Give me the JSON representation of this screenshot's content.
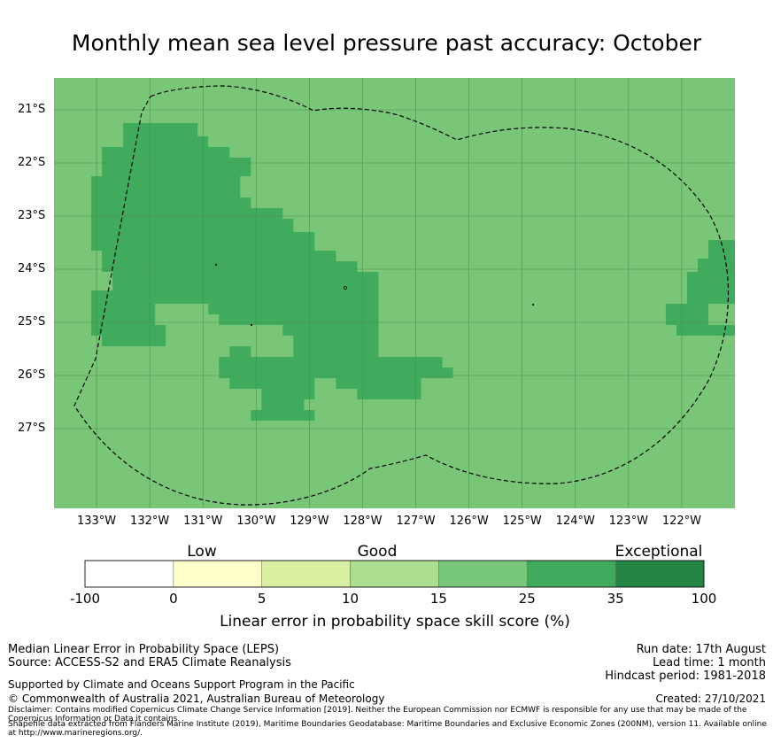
{
  "title": "Monthly mean sea level pressure past accuracy: October",
  "map": {
    "lon_range": [
      -133.8,
      -121.0
    ],
    "lat_range": [
      -28.5,
      -20.4
    ],
    "lat_ticks": [
      "21°S",
      "22°S",
      "23°S",
      "24°S",
      "25°S",
      "26°S",
      "27°S"
    ],
    "lon_ticks": [
      "133°W",
      "132°W",
      "131°W",
      "130°W",
      "129°W",
      "128°W",
      "127°W",
      "126°W",
      "125°W",
      "124°W",
      "123°W",
      "122°W"
    ],
    "background_category": "15-25",
    "region_category": "25-35",
    "colors": {
      "bg": "#79c679",
      "high": "#41ab5d",
      "grid": "#4a8f4a",
      "boundary": "#000000"
    }
  },
  "legend": {
    "categories": [
      "Low",
      "Good",
      "Exceptional"
    ],
    "bounds": [
      "-100",
      "0",
      "5",
      "10",
      "15",
      "25",
      "35",
      "100"
    ],
    "colors": [
      "#ffffff",
      "#ffffcc",
      "#d9f0a3",
      "#addd8e",
      "#78c679",
      "#41ab5d",
      "#238443"
    ],
    "axis_title": "Linear error in probability space skill score (%)"
  },
  "footer": {
    "line1": "Median Linear Error in Probability Space (LEPS)",
    "line2": "Source: ACCESS-S2 and ERA5 Climate Reanalysis",
    "support": "Supported by Climate and Oceans Support Program in the Pacific",
    "copyright": "© Commonwealth of Australia 2021, Australian Bureau of Meteorology",
    "run_date": "Run date: 17th August",
    "lead_time": "Lead time: 1 month",
    "hindcast": "Hindcast period: 1981-2018",
    "created": "Created: 27/10/2021",
    "disclaimer1": "Disclaimer: Contains modified Copernicus Climate Change Service Information [2019]. Neither the European Commission nor ECMWF is responsible for any use that may be made of the Copernicus Information or Data it contains.",
    "disclaimer2": "Shapefile data extracted from Flanders Marine Institute (2019), Maritime Boundaries Geodatabase: Maritime Boundaries and Exclusive Economic Zones (200NM), version 11. Available online at http://www.marineregions.org/."
  }
}
